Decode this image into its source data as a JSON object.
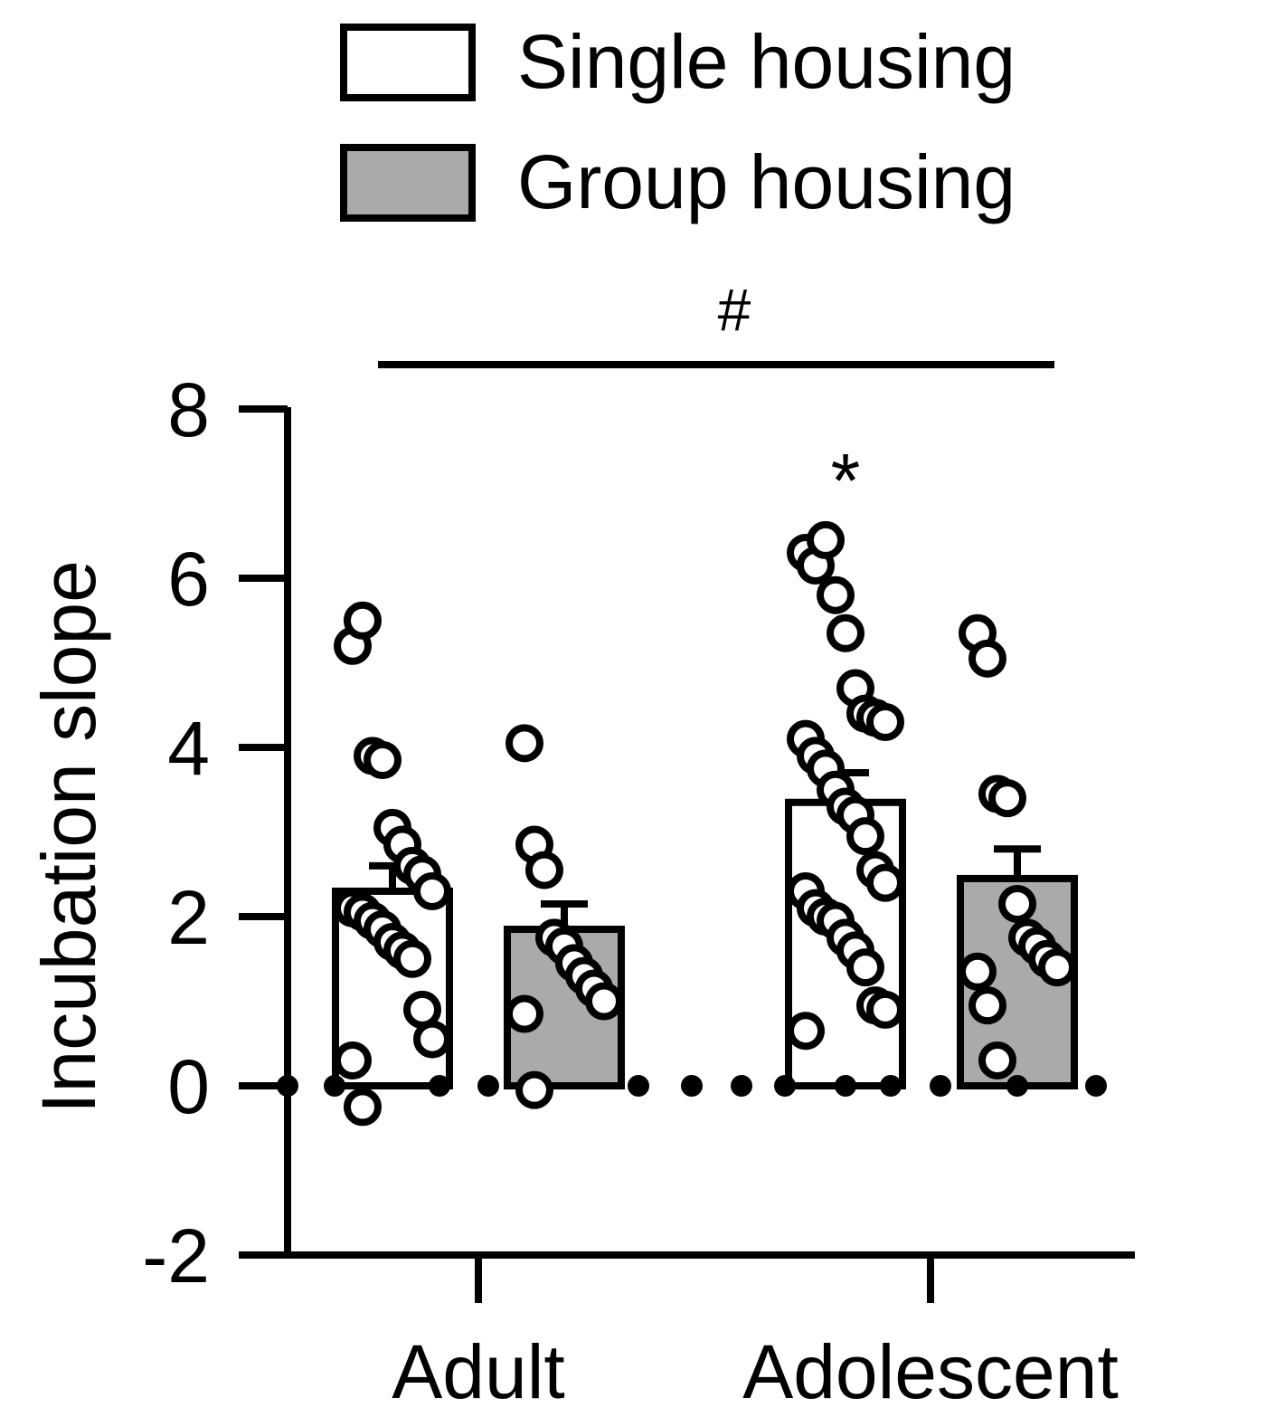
{
  "chart_data": {
    "type": "bar",
    "title": "",
    "xlabel": "",
    "ylabel": "Incubation slope",
    "ylim": [
      -2,
      8
    ],
    "yticks": [
      "-2",
      "0",
      "2",
      "4",
      "6",
      "8"
    ],
    "grid": false,
    "legend_position": "top-right",
    "categories": [
      "Adult",
      "Adolescent"
    ],
    "series": [
      {
        "name": "Single housing",
        "color": "#ffffff",
        "values": [
          2.3,
          3.35
        ],
        "errors": [
          0.3,
          0.35
        ],
        "points": [
          [
            5.2,
            5.5,
            3.9,
            3.85,
            3.05,
            2.85,
            2.6,
            2.5,
            2.3,
            2.1,
            2.05,
            1.95,
            1.85,
            1.7,
            1.6,
            1.5,
            0.9,
            0.55,
            0.3,
            -0.25
          ],
          [
            6.3,
            6.15,
            6.45,
            5.8,
            5.35,
            4.7,
            4.4,
            4.35,
            4.3,
            4.1,
            3.9,
            3.75,
            3.5,
            3.3,
            3.2,
            2.95,
            2.55,
            2.4,
            2.3,
            2.1,
            2.0,
            1.95,
            1.75,
            1.6,
            1.4,
            0.95,
            0.9,
            0.65
          ]
        ]
      },
      {
        "name": "Group housing",
        "color": "#aaaaaa",
        "values": [
          1.85,
          2.45
        ],
        "errors": [
          0.3,
          0.35
        ],
        "points": [
          [
            4.05,
            2.85,
            2.55,
            1.75,
            1.65,
            1.45,
            1.3,
            1.15,
            1.0,
            0.85,
            -0.05
          ],
          [
            5.35,
            5.05,
            3.45,
            3.4,
            2.15,
            1.75,
            1.65,
            1.5,
            1.4,
            1.35,
            0.95,
            0.3
          ]
        ]
      }
    ],
    "zero_dots": [
      {
        "category": "Adult",
        "series": "Single housing",
        "count": 3
      },
      {
        "category": "Adult",
        "series": "Group housing",
        "count": 2
      },
      {
        "category": "Adolescent",
        "series": "Single housing",
        "count": 3
      },
      {
        "category": "Adolescent",
        "series": "Group housing",
        "count": 3
      }
    ],
    "annotations": [
      {
        "text": "#",
        "type": "bracket",
        "between": [
          "Adult",
          "Adolescent"
        ]
      },
      {
        "text": "*",
        "category": "Adolescent",
        "series": "Single housing"
      }
    ]
  }
}
